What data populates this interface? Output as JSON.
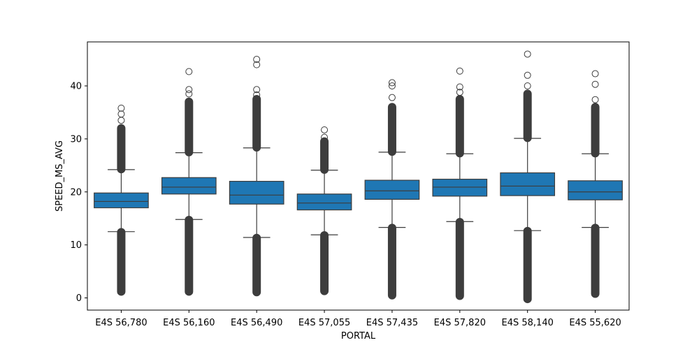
{
  "chart_data": {
    "type": "box",
    "xlabel": "PORTAL",
    "ylabel": "SPEED_MS_AVG",
    "ylim": [
      -2.3,
      48.3
    ],
    "yticks": [
      0,
      10,
      20,
      30,
      40
    ],
    "grid": false,
    "box_color": "#1f77b4",
    "line_color": "#3d3d3d",
    "categories": [
      "E4S 56,780",
      "E4S 56,160",
      "E4S 56,490",
      "E4S 57,055",
      "E4S 57,435",
      "E4S 57,820",
      "E4S 58,140",
      "E4S 55,620"
    ],
    "boxes": [
      {
        "q1": 17.0,
        "median": 18.2,
        "q3": 19.8,
        "whisker_low": 12.5,
        "whisker_high": 24.2,
        "outliers_low": [
          1.2,
          12.4
        ],
        "outliers_high": [
          24.3,
          32.0,
          33.5,
          34.7,
          35.8
        ]
      },
      {
        "q1": 19.6,
        "median": 20.9,
        "q3": 22.7,
        "whisker_low": 14.8,
        "whisker_high": 27.4,
        "outliers_low": [
          1.2,
          14.7
        ],
        "outliers_high": [
          27.5,
          37.0,
          38.5,
          39.3,
          42.7
        ]
      },
      {
        "q1": 17.7,
        "median": 19.4,
        "q3": 22.0,
        "whisker_low": 11.4,
        "whisker_high": 28.3,
        "outliers_low": [
          1.1,
          11.3
        ],
        "outliers_high": [
          28.4,
          37.5,
          38.3,
          39.3,
          44.0,
          45.0
        ]
      },
      {
        "q1": 16.6,
        "median": 17.9,
        "q3": 19.6,
        "whisker_low": 11.9,
        "whisker_high": 24.1,
        "outliers_low": [
          1.3,
          11.8
        ],
        "outliers_high": [
          24.2,
          29.5,
          30.3,
          31.7
        ]
      },
      {
        "q1": 18.6,
        "median": 20.2,
        "q3": 22.2,
        "whisker_low": 13.3,
        "whisker_high": 27.5,
        "outliers_low": [
          0.5,
          13.2
        ],
        "outliers_high": [
          27.6,
          36.0,
          37.8,
          40.0,
          40.6
        ]
      },
      {
        "q1": 19.2,
        "median": 20.9,
        "q3": 22.4,
        "whisker_low": 14.4,
        "whisker_high": 27.2,
        "outliers_low": [
          0.4,
          14.3
        ],
        "outliers_high": [
          27.3,
          37.5,
          38.8,
          39.8,
          42.8
        ]
      },
      {
        "q1": 19.3,
        "median": 21.1,
        "q3": 23.6,
        "whisker_low": 12.7,
        "whisker_high": 30.1,
        "outliers_low": [
          -0.2,
          12.6
        ],
        "outliers_high": [
          30.2,
          38.5,
          40.0,
          42.0,
          46.0
        ]
      },
      {
        "q1": 18.5,
        "median": 20.0,
        "q3": 22.1,
        "whisker_low": 13.3,
        "whisker_high": 27.2,
        "outliers_low": [
          0.8,
          13.2
        ],
        "outliers_high": [
          27.3,
          36.0,
          37.4,
          40.3,
          42.3
        ]
      }
    ]
  }
}
